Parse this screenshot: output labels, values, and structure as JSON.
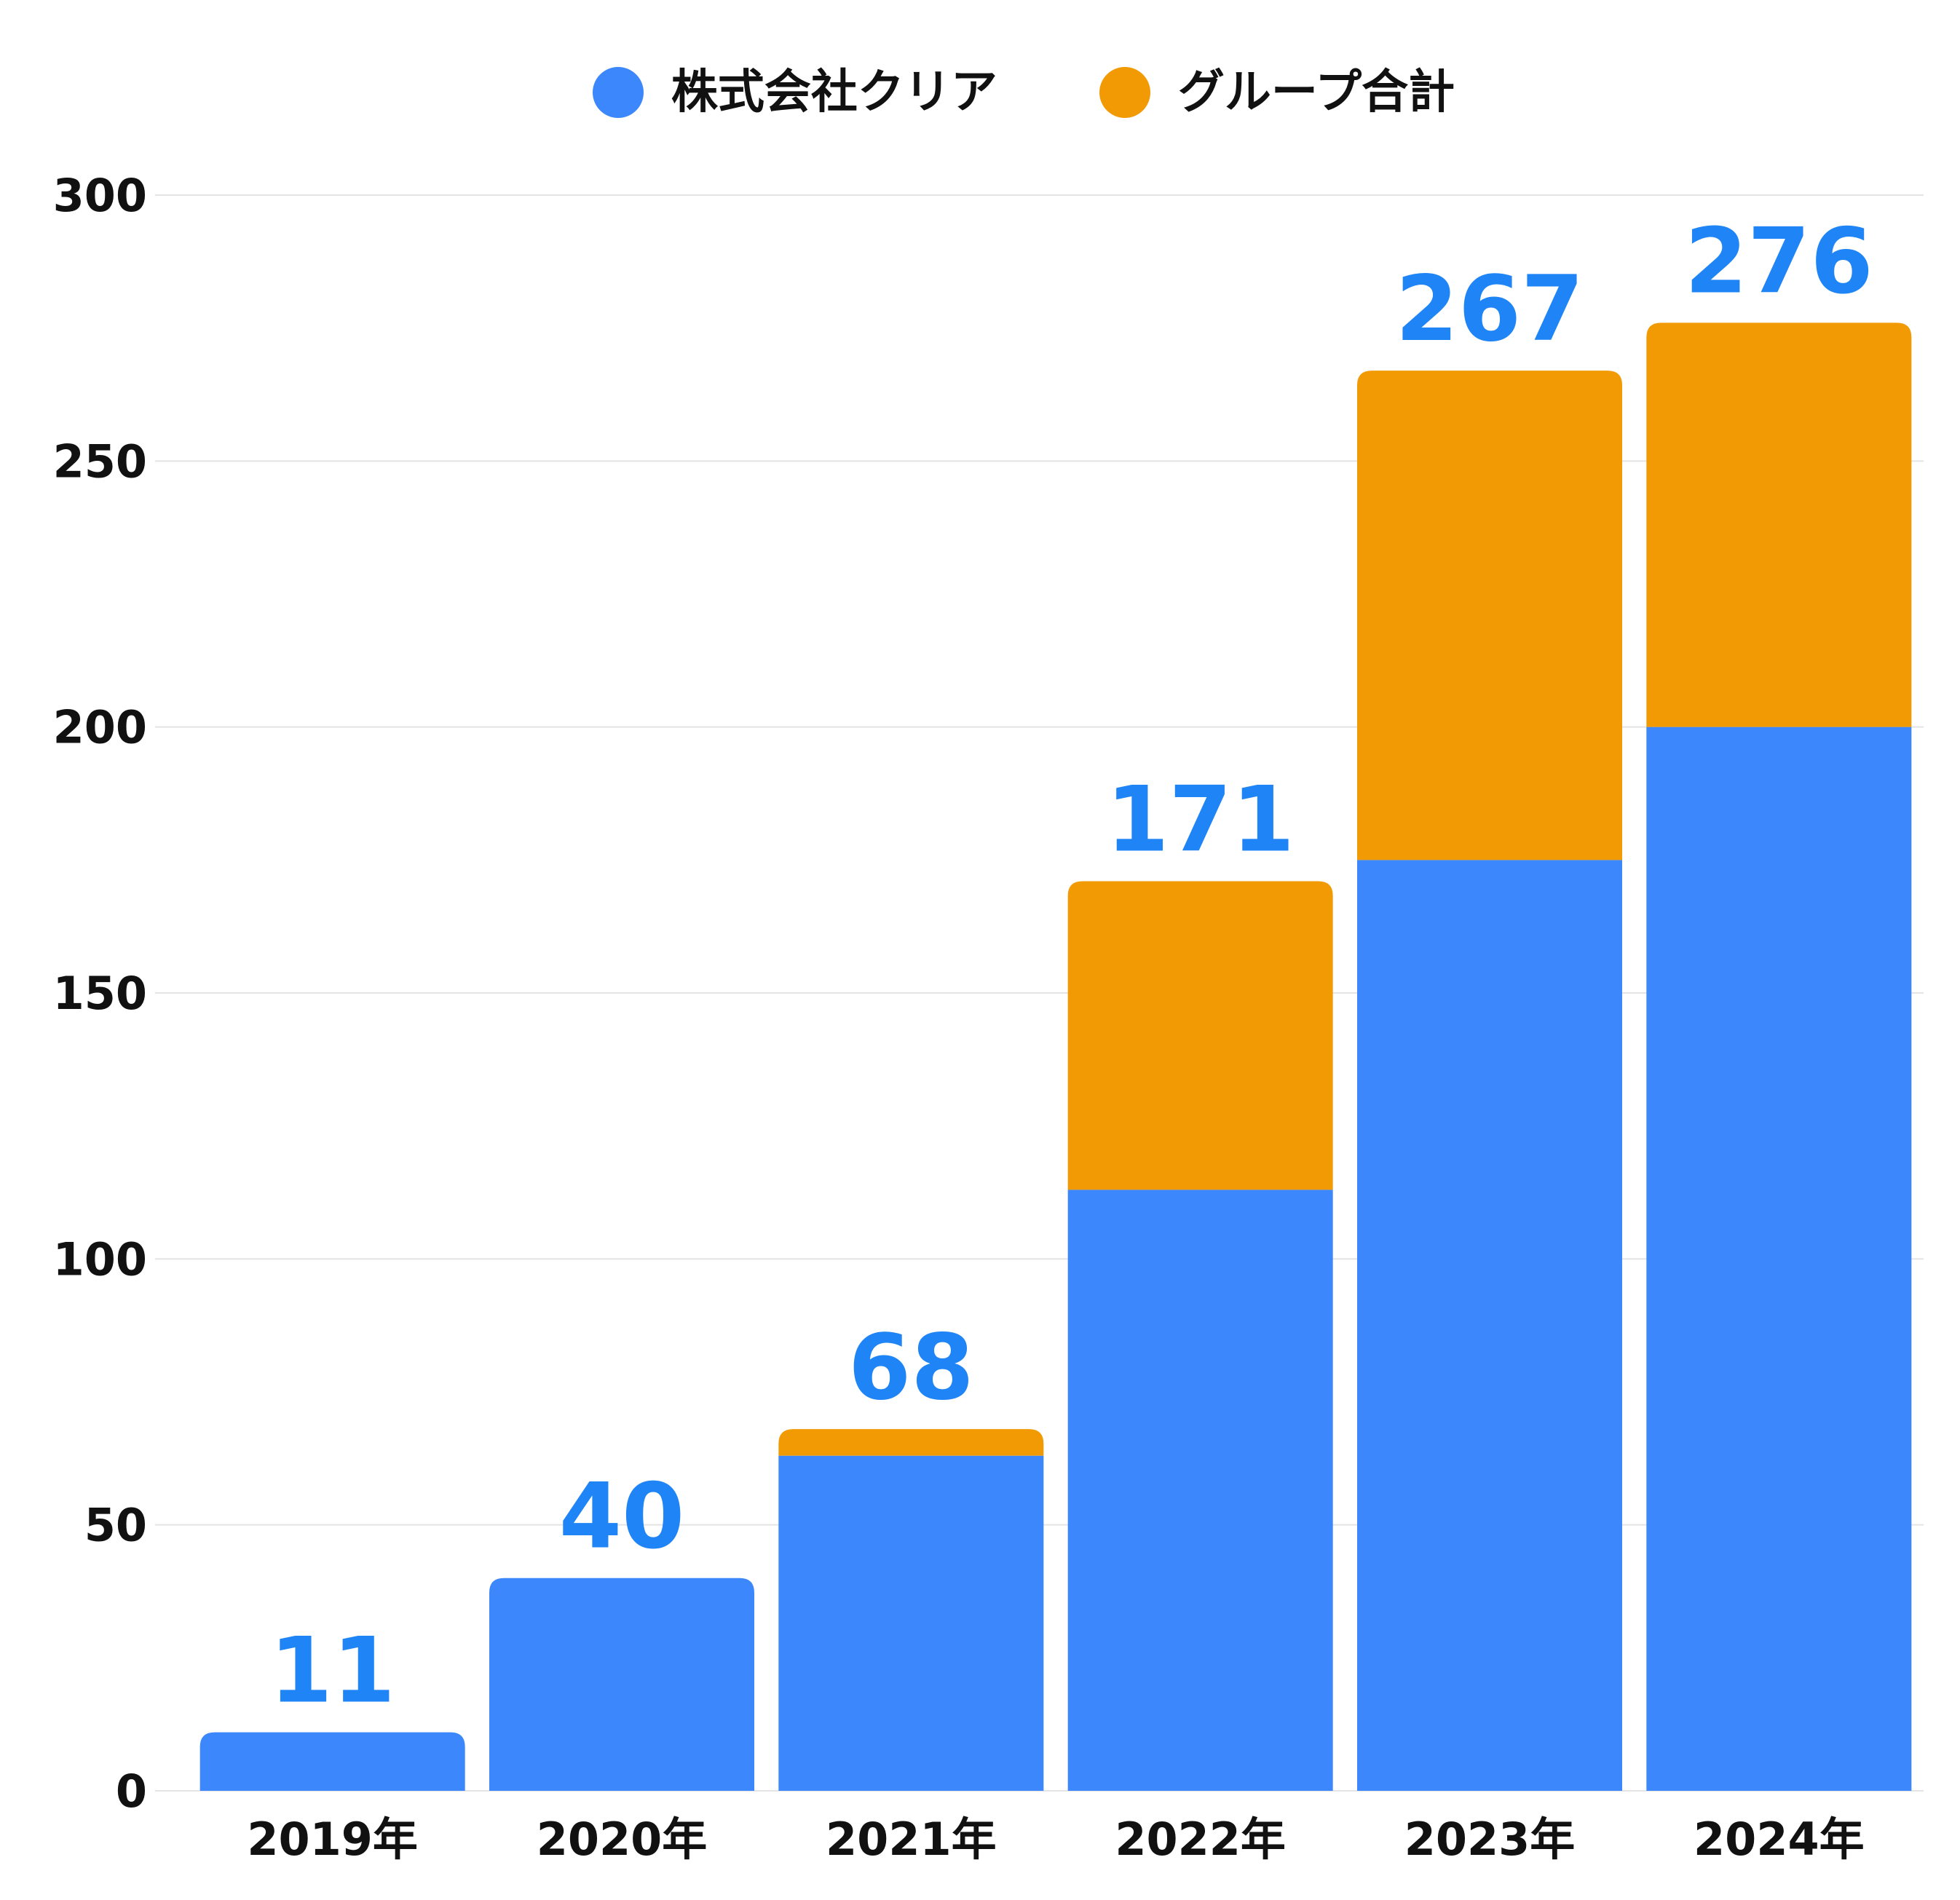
{
  "chart_data": {
    "type": "bar",
    "stacked": true,
    "categories": [
      "2019年",
      "2020年",
      "2021年",
      "2022年",
      "2023年",
      "2024年"
    ],
    "series": [
      {
        "name": "株式会社クリア",
        "values": [
          11,
          40,
          63,
          113,
          175,
          200
        ],
        "color": "#3b87fb"
      },
      {
        "name": "グループ合計",
        "values": [
          0,
          0,
          5,
          58,
          92,
          76
        ],
        "color": "#f29a04"
      }
    ],
    "totals": [
      11,
      40,
      68,
      171,
      267,
      276
    ],
    "total_label_color": "#1f84f5",
    "ylim": [
      0,
      300
    ],
    "yticks": [
      0,
      50,
      100,
      150,
      200,
      250,
      300
    ],
    "grid": true,
    "legend_position": "top-center",
    "title": "",
    "xlabel": "",
    "ylabel": ""
  }
}
